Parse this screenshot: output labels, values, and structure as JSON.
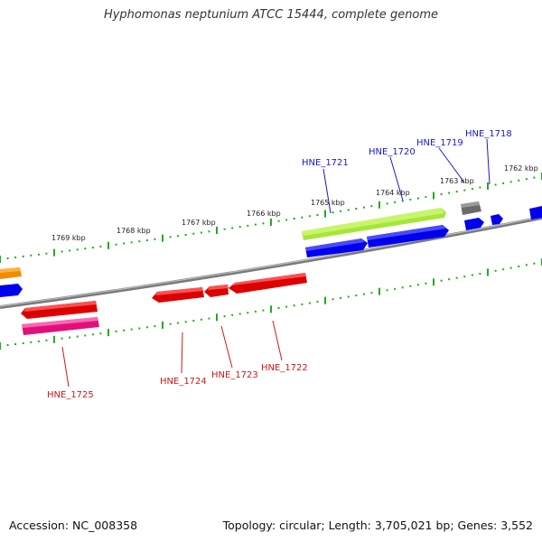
{
  "title": "Hyphomonas neptunium ATCC 15444, complete genome",
  "footer": {
    "accession": "Accession: NC_008358",
    "stats": "Topology: circular; Length: 3,705,021 bp; Genes: 3,552"
  },
  "colors": {
    "forward_gene": "#0000ee",
    "reverse_gene": "#ee0000",
    "backbone": "#808080",
    "scale_tick": "#22aa22",
    "forward_label": "#1a1acc",
    "reverse_label": "#cc1a1a"
  },
  "scale_labels": [
    "1769 kbp",
    "1768 kbp",
    "1767 kbp",
    "1766 kbp",
    "1765 kbp",
    "1764 kbp",
    "1763 kbp",
    "1762 kbp"
  ],
  "forward_labels": [
    "HNE_1721",
    "HNE_1720",
    "HNE_1719",
    "HNE_1718"
  ],
  "reverse_labels": [
    "HNE_1725",
    "HNE_1724",
    "HNE_1723",
    "HNE_1722"
  ]
}
